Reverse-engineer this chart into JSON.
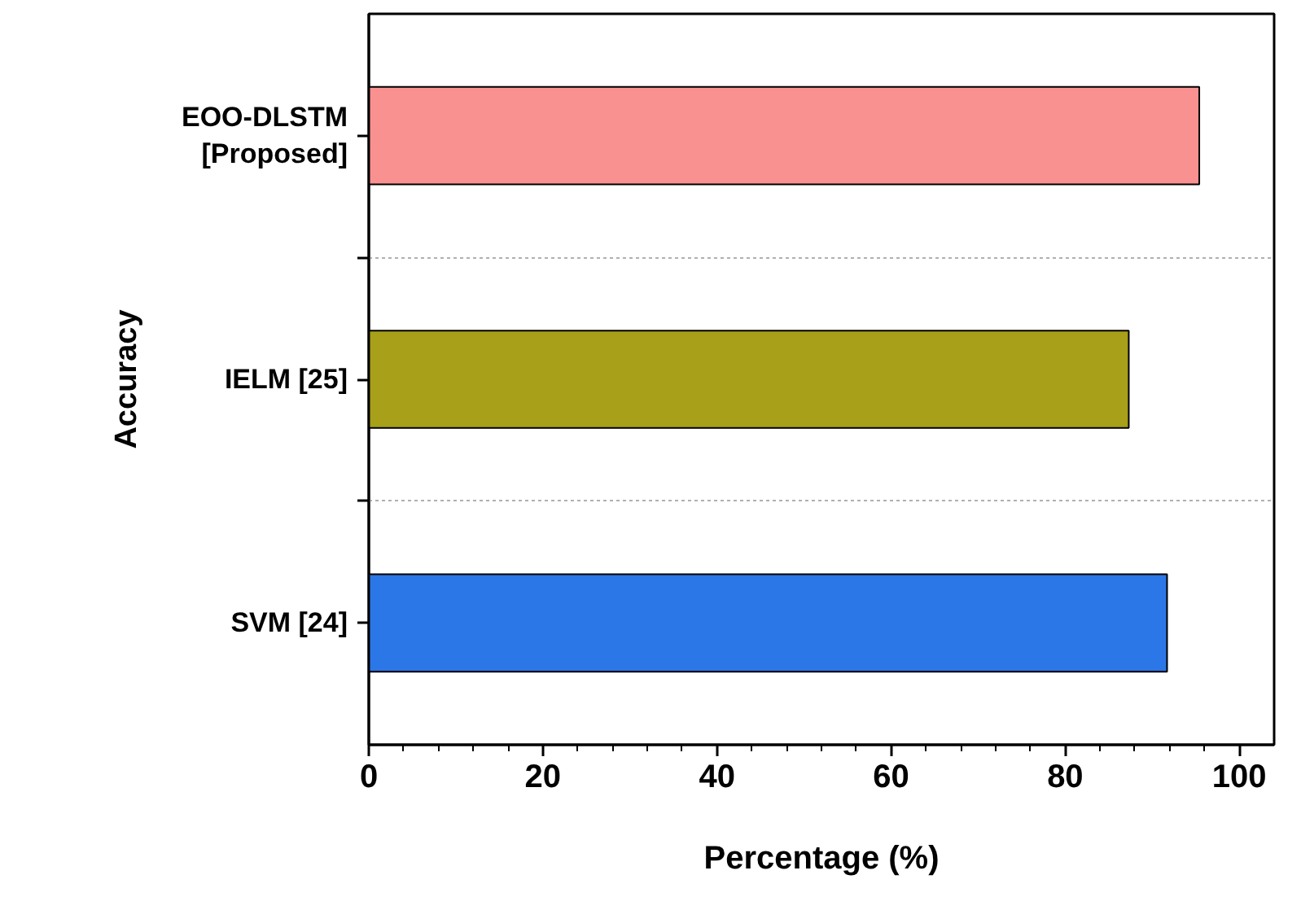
{
  "chart_data": {
    "type": "bar",
    "orientation": "horizontal",
    "ylabel": "Accuracy",
    "xlabel": "Percentage (%)",
    "categories": [
      "EOO-DLSTM\n[Proposed]",
      "IELM [25]",
      "SVM [24]"
    ],
    "values": [
      95.4,
      87.3,
      91.7
    ],
    "colors": [
      "#f99191",
      "#a8a018",
      "#2c77e8"
    ],
    "xlim": [
      0,
      104
    ],
    "xticks": [
      0,
      20,
      40,
      60,
      80,
      100
    ],
    "grid": "y"
  }
}
